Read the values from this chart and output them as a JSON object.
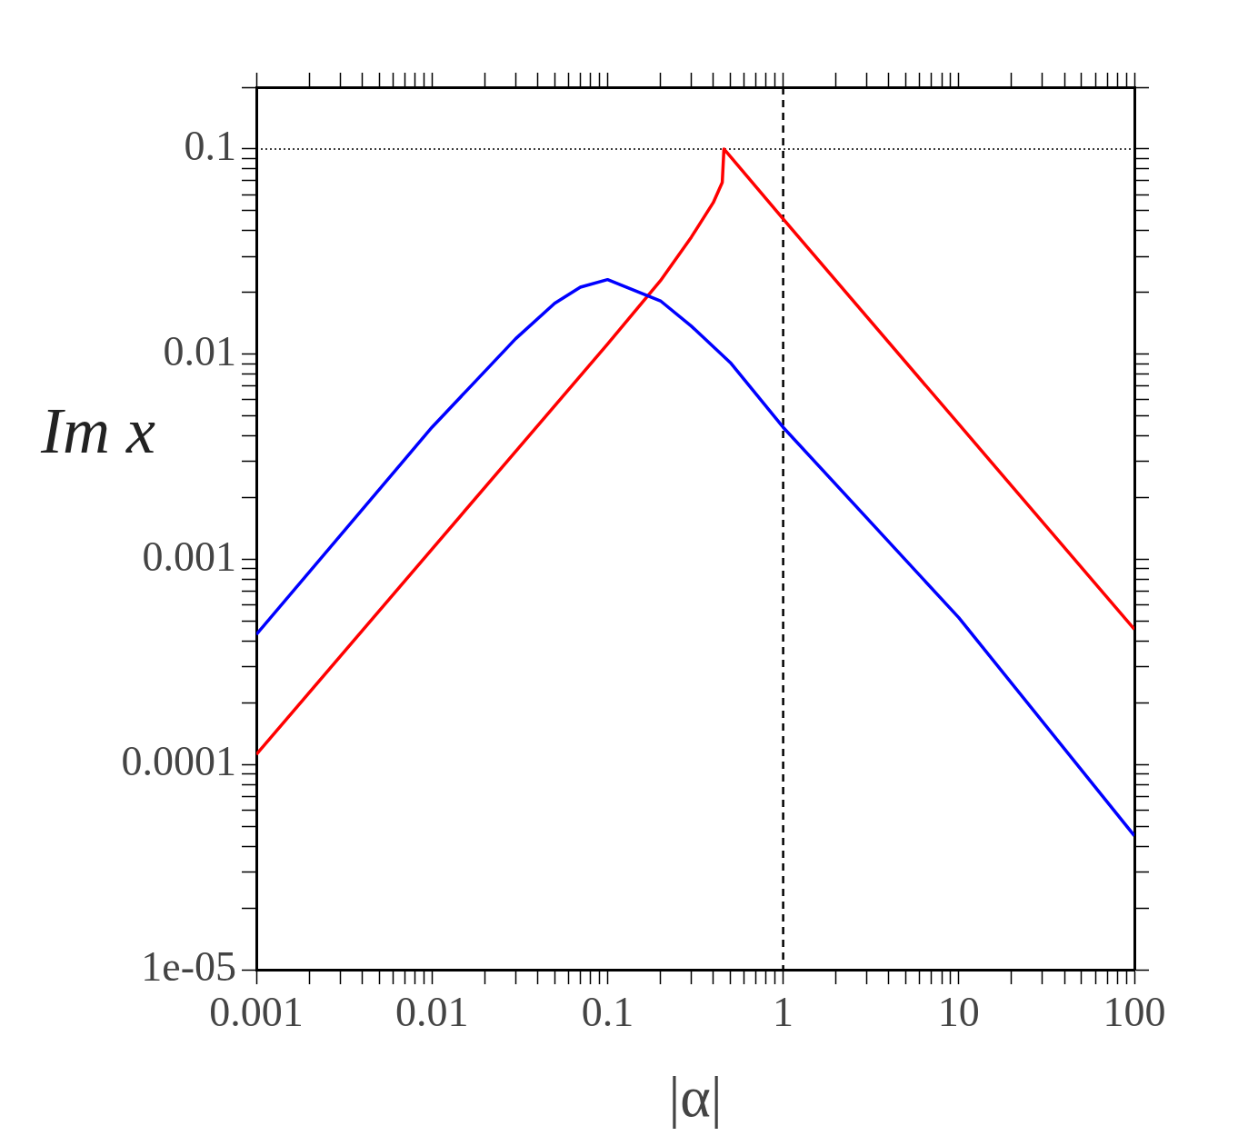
{
  "chart_data": {
    "type": "line",
    "xlabel": "|α|",
    "ylabel": "Im x",
    "log": "xy",
    "grid": false,
    "legend": false,
    "marker": "none",
    "line_style": "solid",
    "xlim": [
      0.001,
      100
    ],
    "ylim": [
      1e-05,
      0.2
    ],
    "xticks": [
      0.001,
      {
        "value": 0.002,
        "label": null
      },
      {
        "value": 0.003,
        "label": null
      },
      {
        "value": 0.004,
        "label": null
      },
      {
        "value": 0.005,
        "label": null
      },
      {
        "value": 0.006,
        "label": null
      },
      {
        "value": 0.007,
        "label": null
      },
      {
        "value": 0.008,
        "label": null
      },
      {
        "value": 0.009,
        "label": null
      },
      0.01,
      {
        "value": 0.02,
        "label": null
      },
      {
        "value": 0.03,
        "label": null
      },
      {
        "value": 0.04,
        "label": null
      },
      {
        "value": 0.05,
        "label": null
      },
      {
        "value": 0.06,
        "label": null
      },
      {
        "value": 0.07,
        "label": null
      },
      {
        "value": 0.08,
        "label": null
      },
      {
        "value": 0.09,
        "label": null
      },
      0.1,
      {
        "value": 0.2,
        "label": null
      },
      {
        "value": 0.3,
        "label": null
      },
      {
        "value": 0.4,
        "label": null
      },
      {
        "value": 0.5,
        "label": null
      },
      {
        "value": 0.6,
        "label": null
      },
      {
        "value": 0.7,
        "label": null
      },
      {
        "value": 0.8,
        "label": null
      },
      {
        "value": 0.9,
        "label": null
      },
      1,
      {
        "value": 2,
        "label": null
      },
      {
        "value": 3,
        "label": null
      },
      {
        "value": 4,
        "label": null
      },
      {
        "value": 5,
        "label": null
      },
      {
        "value": 6,
        "label": null
      },
      {
        "value": 7,
        "label": null
      },
      {
        "value": 8,
        "label": null
      },
      {
        "value": 9,
        "label": null
      },
      10,
      {
        "value": 20,
        "label": null
      },
      {
        "value": 30,
        "label": null
      },
      {
        "value": 40,
        "label": null
      },
      {
        "value": 50,
        "label": null
      },
      {
        "value": 60,
        "label": null
      },
      {
        "value": 70,
        "label": null
      },
      {
        "value": 80,
        "label": null
      },
      {
        "value": 90,
        "label": null
      },
      100
    ],
    "yticks": [
      {
        "value": 1e-05,
        "label": "1e-05"
      },
      {
        "value": 2e-05,
        "label": null
      },
      {
        "value": 3e-05,
        "label": null
      },
      {
        "value": 4e-05,
        "label": null
      },
      {
        "value": 5e-05,
        "label": null
      },
      {
        "value": 6e-05,
        "label": null
      },
      {
        "value": 7e-05,
        "label": null
      },
      {
        "value": 8e-05,
        "label": null
      },
      {
        "value": 9e-05,
        "label": null
      },
      0.0001,
      {
        "value": 0.0002,
        "label": null
      },
      {
        "value": 0.0003,
        "label": null
      },
      {
        "value": 0.0004,
        "label": null
      },
      {
        "value": 0.0005,
        "label": null
      },
      {
        "value": 0.0006,
        "label": null
      },
      {
        "value": 0.0007,
        "label": null
      },
      {
        "value": 0.0008,
        "label": null
      },
      {
        "value": 0.0009,
        "label": null
      },
      0.001,
      {
        "value": 0.002,
        "label": null
      },
      {
        "value": 0.003,
        "label": null
      },
      {
        "value": 0.004,
        "label": null
      },
      {
        "value": 0.005,
        "label": null
      },
      {
        "value": 0.006,
        "label": null
      },
      {
        "value": 0.007,
        "label": null
      },
      {
        "value": 0.008,
        "label": null
      },
      {
        "value": 0.009,
        "label": null
      },
      0.01,
      {
        "value": 0.02,
        "label": null
      },
      {
        "value": 0.03,
        "label": null
      },
      {
        "value": 0.04,
        "label": null
      },
      {
        "value": 0.05,
        "label": null
      },
      {
        "value": 0.06,
        "label": null
      },
      {
        "value": 0.07,
        "label": null
      },
      {
        "value": 0.08,
        "label": null
      },
      {
        "value": 0.09,
        "label": null
      },
      0.1,
      {
        "value": 0.2,
        "label": null
      }
    ],
    "ref_lines": [
      {
        "axis": "x",
        "value": 1,
        "line_style": "dashed",
        "color": "#000000"
      },
      {
        "axis": "y",
        "value": 0.1,
        "line_style": "dotted",
        "color": "#000000"
      }
    ],
    "series": [
      {
        "color": "#0000ff",
        "x": [
          0.001,
          0.01,
          0.03,
          0.05,
          0.07,
          0.1,
          0.2,
          0.3,
          0.5,
          1,
          10,
          100
        ],
        "values": [
          0.00043,
          0.0044,
          0.0119,
          0.0177,
          0.0212,
          0.0231,
          0.0182,
          0.0137,
          0.0091,
          0.0044,
          0.00052,
          4.5e-05
        ]
      },
      {
        "color": "#ff0000",
        "x": [
          0.001,
          0.01,
          0.1,
          0.2,
          0.3,
          0.4,
          0.45,
          0.46,
          1,
          10,
          100
        ],
        "values": [
          0.000112,
          0.00112,
          0.0112,
          0.0228,
          0.0372,
          0.0548,
          0.0687,
          0.1,
          0.0456,
          0.00456,
          0.000456
        ]
      }
    ]
  }
}
